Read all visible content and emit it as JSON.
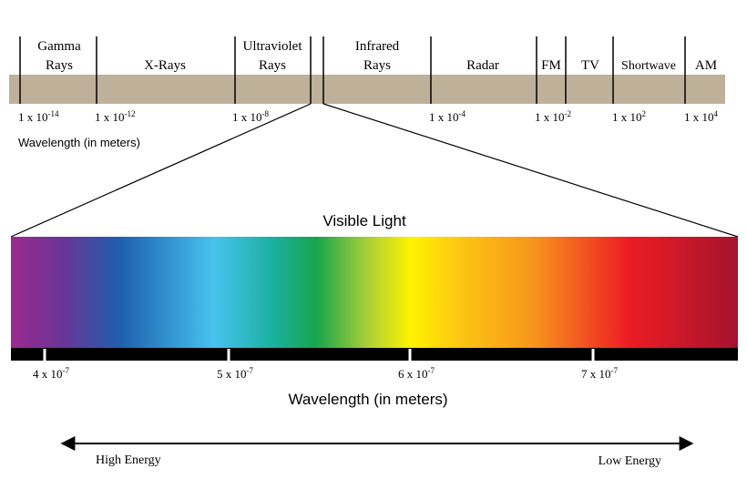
{
  "spectrum": {
    "bands": [
      {
        "lines": [
          "Gamma",
          "Rays"
        ]
      },
      {
        "lines": [
          "X-Rays"
        ]
      },
      {
        "lines": [
          "Ultraviolet",
          "Rays"
        ]
      },
      {
        "lines": [
          "Infrared",
          "Rays"
        ]
      },
      {
        "lines": [
          "Radar"
        ]
      },
      {
        "lines": [
          "FM"
        ]
      },
      {
        "lines": [
          "TV"
        ]
      },
      {
        "lines": [
          "Shortwave"
        ]
      },
      {
        "lines": [
          "AM"
        ]
      }
    ],
    "wavelengths": [
      {
        "base": "1 x 10",
        "exp": "-14"
      },
      {
        "base": "1 x 10",
        "exp": "-12"
      },
      {
        "base": "1 x 10",
        "exp": "-8"
      },
      {
        "base": "1 x 10",
        "exp": "-4"
      },
      {
        "base": "1 x 10",
        "exp": "-2"
      },
      {
        "base": "1 x 10",
        "exp": "2"
      },
      {
        "base": "1 x 10",
        "exp": "4"
      }
    ],
    "axis_label": "Wavelength (in meters)"
  },
  "visible": {
    "title": "Visible Light",
    "ticks": [
      {
        "base": "4 x 10",
        "exp": "-7"
      },
      {
        "base": "5 x 10",
        "exp": "-7"
      },
      {
        "base": "6 x 10",
        "exp": "-7"
      },
      {
        "base": "7 x 10",
        "exp": "-7"
      }
    ],
    "axis_label": "Wavelength (in meters)"
  },
  "energy": {
    "left": "High Energy",
    "right": "Low Energy"
  }
}
